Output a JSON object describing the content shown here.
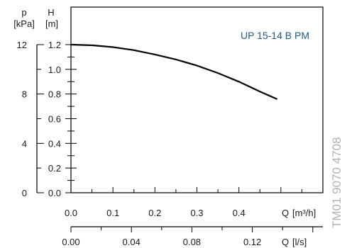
{
  "chart_data": {
    "type": "line",
    "title": "",
    "series_label": "UP 15-14 B PM",
    "watermark": "TM01 9070 4708",
    "left_axis_outer": {
      "label_top": "p",
      "label_unit": "[kPa]",
      "ticks": [
        "0",
        "4",
        "8",
        "12"
      ]
    },
    "left_axis_inner": {
      "label_top": "H",
      "label_unit": "[m]",
      "ylim": [
        0,
        1.2
      ],
      "ticks": [
        "0.0",
        "0.2",
        "0.4",
        "0.6",
        "0.8",
        "1.0",
        "1.2"
      ]
    },
    "x_axis_primary": {
      "label": "Q",
      "unit": "[m³/h]",
      "xlim": [
        0,
        0.5
      ],
      "ticks": [
        "0.0",
        "0.1",
        "0.2",
        "0.3",
        "0.4"
      ]
    },
    "x_axis_secondary": {
      "label": "Q",
      "unit": "[l/s]",
      "ticks": [
        "0.00",
        "0.04",
        "0.08",
        "0.12"
      ]
    },
    "series": [
      {
        "name": "UP 15-14 B PM",
        "x": [
          0.0,
          0.05,
          0.1,
          0.15,
          0.2,
          0.25,
          0.3,
          0.35,
          0.4,
          0.45,
          0.49
        ],
        "y": [
          1.2,
          1.195,
          1.18,
          1.155,
          1.12,
          1.08,
          1.03,
          0.97,
          0.9,
          0.82,
          0.76
        ]
      }
    ],
    "grid": false,
    "legend": "top-right"
  }
}
